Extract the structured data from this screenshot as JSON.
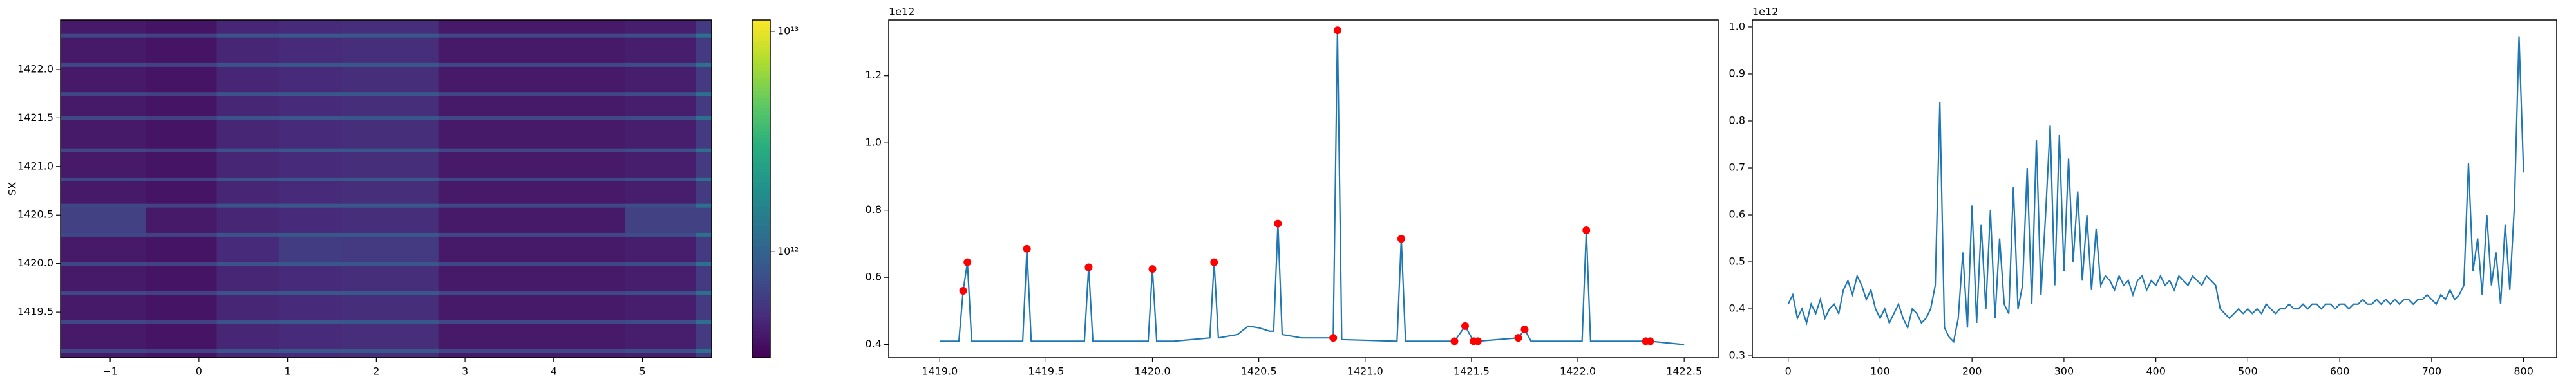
{
  "chart_data": [
    {
      "type": "heatmap",
      "ylabel": "SX",
      "x_edges": [
        -1.56,
        -0.6,
        0.2,
        0.9,
        1.6,
        2.7,
        4.8,
        5.6,
        5.78
      ],
      "y_edges": [
        1419.03,
        1419.08,
        1419.12,
        1419.38,
        1419.42,
        1419.68,
        1419.72,
        1419.98,
        1420.02,
        1420.28,
        1420.32,
        1420.58,
        1420.62,
        1420.85,
        1420.89,
        1421.15,
        1421.19,
        1421.48,
        1421.52,
        1421.73,
        1421.77,
        1422.03,
        1422.07,
        1422.33,
        1422.37,
        1422.51
      ],
      "z": [
        [
          420000000000.0,
          400000000000.0,
          480000000000.0,
          500000000000.0,
          520000000000.0,
          420000000000.0,
          440000000000.0,
          600000000000.0
        ],
        [
          700000000000.0,
          650000000000.0,
          800000000000.0,
          850000000000.0,
          850000000000.0,
          700000000000.0,
          750000000000.0,
          1200000000000.0
        ],
        [
          420000000000.0,
          400000000000.0,
          480000000000.0,
          500000000000.0,
          520000000000.0,
          420000000000.0,
          440000000000.0,
          600000000000.0
        ],
        [
          700000000000.0,
          650000000000.0,
          800000000000.0,
          850000000000.0,
          850000000000.0,
          700000000000.0,
          750000000000.0,
          1200000000000.0
        ],
        [
          420000000000.0,
          400000000000.0,
          480000000000.0,
          500000000000.0,
          520000000000.0,
          420000000000.0,
          440000000000.0,
          600000000000.0
        ],
        [
          700000000000.0,
          650000000000.0,
          800000000000.0,
          850000000000.0,
          850000000000.0,
          700000000000.0,
          750000000000.0,
          1200000000000.0
        ],
        [
          420000000000.0,
          400000000000.0,
          480000000000.0,
          500000000000.0,
          520000000000.0,
          420000000000.0,
          440000000000.0,
          600000000000.0
        ],
        [
          700000000000.0,
          650000000000.0,
          800000000000.0,
          850000000000.0,
          850000000000.0,
          700000000000.0,
          750000000000.0,
          1200000000000.0
        ],
        [
          420000000000.0,
          400000000000.0,
          500000000000.0,
          620000000000.0,
          600000000000.0,
          420000000000.0,
          440000000000.0,
          600000000000.0
        ],
        [
          700000000000.0,
          650000000000.0,
          800000000000.0,
          850000000000.0,
          850000000000.0,
          700000000000.0,
          750000000000.0,
          1200000000000.0
        ],
        [
          650000000000.0,
          420000000000.0,
          480000000000.0,
          500000000000.0,
          520000000000.0,
          420000000000.0,
          650000000000.0,
          650000000000.0
        ],
        [
          700000000000.0,
          650000000000.0,
          800000000000.0,
          850000000000.0,
          850000000000.0,
          700000000000.0,
          750000000000.0,
          1200000000000.0
        ],
        [
          420000000000.0,
          400000000000.0,
          480000000000.0,
          500000000000.0,
          520000000000.0,
          420000000000.0,
          440000000000.0,
          600000000000.0
        ],
        [
          700000000000.0,
          650000000000.0,
          800000000000.0,
          850000000000.0,
          850000000000.0,
          700000000000.0,
          750000000000.0,
          1200000000000.0
        ],
        [
          420000000000.0,
          400000000000.0,
          480000000000.0,
          500000000000.0,
          520000000000.0,
          420000000000.0,
          440000000000.0,
          600000000000.0
        ],
        [
          700000000000.0,
          650000000000.0,
          800000000000.0,
          850000000000.0,
          850000000000.0,
          700000000000.0,
          750000000000.0,
          1200000000000.0
        ],
        [
          420000000000.0,
          400000000000.0,
          480000000000.0,
          500000000000.0,
          520000000000.0,
          420000000000.0,
          440000000000.0,
          600000000000.0
        ],
        [
          700000000000.0,
          650000000000.0,
          800000000000.0,
          850000000000.0,
          850000000000.0,
          700000000000.0,
          750000000000.0,
          1200000000000.0
        ],
        [
          420000000000.0,
          400000000000.0,
          480000000000.0,
          500000000000.0,
          520000000000.0,
          420000000000.0,
          440000000000.0,
          600000000000.0
        ],
        [
          700000000000.0,
          650000000000.0,
          800000000000.0,
          850000000000.0,
          850000000000.0,
          700000000000.0,
          750000000000.0,
          1200000000000.0
        ],
        [
          420000000000.0,
          400000000000.0,
          480000000000.0,
          500000000000.0,
          520000000000.0,
          420000000000.0,
          440000000000.0,
          600000000000.0
        ],
        [
          700000000000.0,
          650000000000.0,
          800000000000.0,
          850000000000.0,
          850000000000.0,
          700000000000.0,
          750000000000.0,
          1200000000000.0
        ],
        [
          420000000000.0,
          400000000000.0,
          480000000000.0,
          500000000000.0,
          520000000000.0,
          420000000000.0,
          440000000000.0,
          600000000000.0
        ],
        [
          700000000000.0,
          650000000000.0,
          800000000000.0,
          850000000000.0,
          850000000000.0,
          700000000000.0,
          750000000000.0,
          1200000000000.0
        ],
        [
          420000000000.0,
          400000000000.0,
          480000000000.0,
          500000000000.0,
          520000000000.0,
          420000000000.0,
          440000000000.0,
          600000000000.0
        ]
      ],
      "xlim": [
        -1.56,
        5.78
      ],
      "ylim": [
        1419.03,
        1422.51
      ],
      "xticks": [
        {
          "value": -1,
          "label": "−1"
        },
        0,
        1,
        2,
        3,
        4,
        5
      ],
      "yticks": [
        1419.5,
        {
          "value": 1420,
          "label": "1420.0"
        },
        1420.5,
        {
          "value": 1421,
          "label": "1421.0"
        },
        1421.5,
        {
          "value": 1422,
          "label": "1422.0"
        }
      ],
      "colorbar": {
        "scale": "log",
        "colormap": "viridis",
        "lim": [
          330000000000.0,
          11300000000000.0
        ],
        "ticks": [
          {
            "value": 10000000000000.0,
            "label": "10¹³"
          },
          {
            "value": 1000000000000.0,
            "label": "10¹²"
          }
        ]
      }
    },
    {
      "type": "line",
      "offset_label": "1e12",
      "xlim": [
        1418.76,
        1422.66
      ],
      "ylim": [
        0.361,
        1.366
      ],
      "xticks": [
        {
          "value": 1419,
          "label": "1419.0"
        },
        1419.5,
        {
          "value": 1420,
          "label": "1420.0"
        },
        1420.5,
        {
          "value": 1421,
          "label": "1421.0"
        },
        1421.5,
        {
          "value": 1422,
          "label": "1422.0"
        },
        1422.5
      ],
      "yticks": [
        0.4,
        0.6,
        0.8,
        {
          "value": 1,
          "label": "1.0"
        },
        1.2
      ],
      "series": [
        {
          "color": "#1f77b4",
          "style": "line",
          "x": [
            1419.0,
            1419.09,
            1419.11,
            1419.13,
            1419.15,
            1419.39,
            1419.41,
            1419.43,
            1419.68,
            1419.7,
            1419.72,
            1419.98,
            1420.0,
            1420.02,
            1420.1,
            1420.27,
            1420.29,
            1420.31,
            1420.4,
            1420.45,
            1420.5,
            1420.55,
            1420.57,
            1420.59,
            1420.61,
            1420.7,
            1420.85,
            1420.87,
            1420.89,
            1421.15,
            1421.17,
            1421.19,
            1421.42,
            1421.47,
            1421.51,
            1421.53,
            1421.72,
            1421.75,
            1421.78,
            1422.02,
            1422.04,
            1422.06,
            1422.32,
            1422.34,
            1422.5
          ],
          "values": [
            0.41,
            0.41,
            0.56,
            0.645,
            0.41,
            0.41,
            0.685,
            0.41,
            0.41,
            0.63,
            0.41,
            0.41,
            0.625,
            0.41,
            0.41,
            0.42,
            0.645,
            0.42,
            0.43,
            0.455,
            0.45,
            0.44,
            0.44,
            0.76,
            0.43,
            0.42,
            0.42,
            1.335,
            0.415,
            0.41,
            0.715,
            0.41,
            0.41,
            0.455,
            0.41,
            0.41,
            0.42,
            0.445,
            0.41,
            0.41,
            0.74,
            0.41,
            0.41,
            0.41,
            0.4
          ]
        },
        {
          "color": "#ff0000",
          "style": "markers",
          "x": [
            1419.11,
            1419.13,
            1419.41,
            1419.7,
            1420.0,
            1420.29,
            1420.59,
            1420.85,
            1420.87,
            1421.17,
            1421.42,
            1421.47,
            1421.51,
            1421.53,
            1421.72,
            1421.75,
            1422.04,
            1422.32,
            1422.34
          ],
          "values": [
            0.56,
            0.645,
            0.685,
            0.63,
            0.625,
            0.645,
            0.76,
            0.42,
            1.335,
            0.715,
            0.41,
            0.455,
            0.41,
            0.41,
            0.42,
            0.445,
            0.74,
            0.41,
            0.41
          ]
        }
      ]
    },
    {
      "type": "line",
      "offset_label": "1e12",
      "xlim": [
        -39,
        836
      ],
      "ylim": [
        0.296,
        1.015
      ],
      "xticks": [
        0,
        100,
        200,
        300,
        400,
        500,
        600,
        700,
        800
      ],
      "yticks": [
        0.3,
        0.4,
        0.5,
        0.6,
        0.7,
        0.8,
        0.9,
        {
          "value": 1,
          "label": "1.0"
        }
      ],
      "series": [
        {
          "color": "#1f77b4",
          "style": "line",
          "x": [
            0,
            5,
            10,
            15,
            20,
            25,
            30,
            35,
            40,
            45,
            50,
            55,
            60,
            65,
            70,
            75,
            80,
            85,
            90,
            95,
            100,
            105,
            110,
            115,
            120,
            125,
            130,
            135,
            140,
            145,
            150,
            155,
            160,
            165,
            170,
            175,
            180,
            185,
            190,
            195,
            200,
            205,
            210,
            215,
            220,
            225,
            230,
            235,
            240,
            245,
            250,
            255,
            260,
            265,
            270,
            275,
            280,
            285,
            290,
            295,
            300,
            305,
            310,
            315,
            320,
            325,
            330,
            335,
            340,
            345,
            350,
            355,
            360,
            365,
            370,
            375,
            380,
            385,
            390,
            395,
            400,
            405,
            410,
            415,
            420,
            425,
            430,
            435,
            440,
            445,
            450,
            455,
            460,
            465,
            470,
            475,
            480,
            485,
            490,
            495,
            500,
            505,
            510,
            515,
            520,
            525,
            530,
            535,
            540,
            545,
            550,
            555,
            560,
            565,
            570,
            575,
            580,
            585,
            590,
            595,
            600,
            605,
            610,
            615,
            620,
            625,
            630,
            635,
            640,
            645,
            650,
            655,
            660,
            665,
            670,
            675,
            680,
            685,
            690,
            695,
            700,
            705,
            710,
            715,
            720,
            725,
            730,
            735,
            740,
            745,
            750,
            755,
            760,
            765,
            770,
            775,
            780,
            785,
            790,
            795,
            800
          ],
          "values": [
            0.41,
            0.43,
            0.38,
            0.4,
            0.37,
            0.41,
            0.39,
            0.42,
            0.38,
            0.4,
            0.41,
            0.39,
            0.44,
            0.46,
            0.43,
            0.47,
            0.45,
            0.42,
            0.44,
            0.4,
            0.38,
            0.4,
            0.37,
            0.39,
            0.41,
            0.38,
            0.36,
            0.4,
            0.39,
            0.37,
            0.38,
            0.4,
            0.45,
            0.84,
            0.36,
            0.34,
            0.33,
            0.38,
            0.52,
            0.36,
            0.62,
            0.37,
            0.58,
            0.4,
            0.61,
            0.38,
            0.55,
            0.41,
            0.39,
            0.66,
            0.4,
            0.45,
            0.7,
            0.41,
            0.76,
            0.43,
            0.6,
            0.79,
            0.45,
            0.77,
            0.48,
            0.72,
            0.5,
            0.65,
            0.46,
            0.6,
            0.44,
            0.57,
            0.45,
            0.47,
            0.46,
            0.44,
            0.47,
            0.45,
            0.46,
            0.43,
            0.46,
            0.47,
            0.44,
            0.46,
            0.45,
            0.47,
            0.45,
            0.46,
            0.44,
            0.47,
            0.46,
            0.45,
            0.47,
            0.46,
            0.45,
            0.47,
            0.46,
            0.45,
            0.4,
            0.39,
            0.38,
            0.39,
            0.4,
            0.39,
            0.4,
            0.39,
            0.4,
            0.39,
            0.41,
            0.4,
            0.39,
            0.4,
            0.4,
            0.41,
            0.4,
            0.4,
            0.41,
            0.4,
            0.41,
            0.41,
            0.4,
            0.41,
            0.41,
            0.4,
            0.41,
            0.41,
            0.4,
            0.41,
            0.41,
            0.42,
            0.41,
            0.41,
            0.42,
            0.41,
            0.42,
            0.41,
            0.42,
            0.41,
            0.42,
            0.42,
            0.41,
            0.42,
            0.42,
            0.43,
            0.42,
            0.41,
            0.43,
            0.42,
            0.44,
            0.42,
            0.43,
            0.45,
            0.71,
            0.48,
            0.55,
            0.43,
            0.6,
            0.45,
            0.52,
            0.41,
            0.58,
            0.44,
            0.62,
            0.98,
            0.69
          ]
        }
      ]
    }
  ]
}
